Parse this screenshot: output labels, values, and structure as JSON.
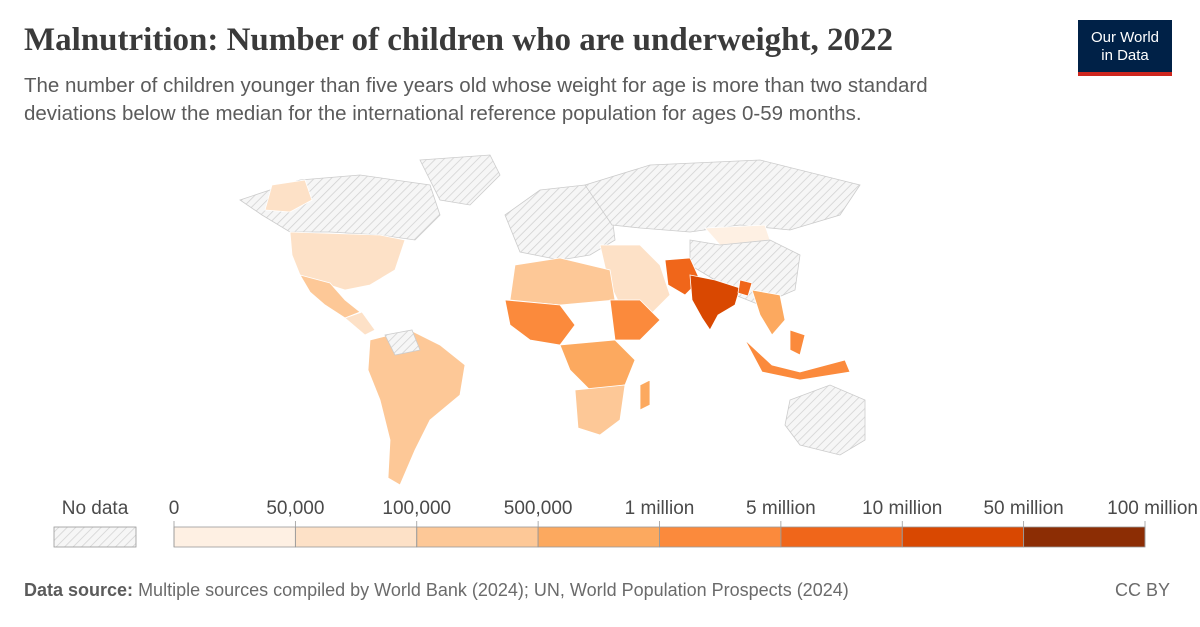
{
  "header": {
    "title": "Malnutrition: Number of children who are underweight, 2022",
    "subtitle": "The number of children younger than five years old whose weight for age is more than two standard deviations below the median for the international reference population for ages 0-59 months."
  },
  "logo": {
    "lines": [
      "Our World",
      "in Data"
    ]
  },
  "legend": {
    "no_data_label": "No data",
    "ticks": [
      0,
      {
        "value": 50000,
        "label": "50,000"
      },
      {
        "value": 100000,
        "label": "100,000"
      },
      {
        "value": 500000,
        "label": "500,000"
      },
      {
        "value": 1000000,
        "label": "1 million"
      },
      {
        "value": 5000000,
        "label": "5 million"
      },
      {
        "value": 10000000,
        "label": "10 million"
      },
      {
        "value": 50000000,
        "label": "50 million"
      },
      {
        "value": 100000000,
        "label": "100 million"
      }
    ],
    "colors": [
      "#fef0e3",
      "#fde1c7",
      "#fdc897",
      "#fca95f",
      "#fb8a3c",
      "#f0661a",
      "#d94801",
      "#8c2d04"
    ]
  },
  "footer": {
    "source_label": "Data source:",
    "source_text": "Multiple sources compiled by World Bank (2024); UN, World Population Prospects (2024)",
    "license": "CC BY"
  }
}
